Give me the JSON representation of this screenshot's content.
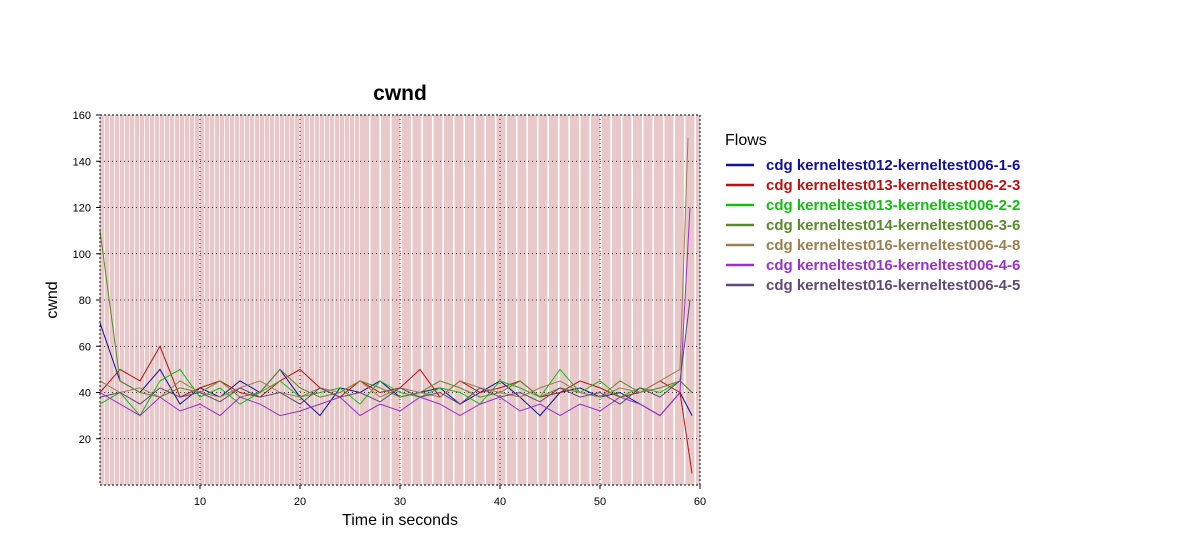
{
  "chart_data": {
    "type": "line",
    "title": "cwnd",
    "xlabel": "Time in seconds",
    "ylabel": "cwnd",
    "xlim": [
      0,
      60
    ],
    "ylim": [
      0,
      160
    ],
    "xticks": [
      10,
      20,
      30,
      40,
      50,
      60
    ],
    "yticks": [
      20,
      40,
      60,
      80,
      100,
      120,
      140,
      160
    ],
    "grid": true,
    "background_bands": true,
    "legend_title": "Flows",
    "legend_position": "right",
    "series": [
      {
        "name": "cdg kerneltest012-kerneltest006-1-6",
        "color": "#1010a0",
        "x": [
          0,
          2,
          4,
          6,
          8,
          10,
          12,
          14,
          16,
          18,
          20,
          22,
          24,
          26,
          28,
          30,
          32,
          34,
          36,
          38,
          40,
          42,
          44,
          46,
          48,
          50,
          52,
          54,
          56,
          58,
          59.2
        ],
        "y": [
          70,
          45,
          40,
          50,
          35,
          42,
          38,
          45,
          40,
          50,
          38,
          30,
          42,
          40,
          45,
          38,
          40,
          42,
          35,
          40,
          45,
          38,
          30,
          40,
          42,
          38,
          40,
          35,
          30,
          40,
          30
        ]
      },
      {
        "name": "cdg kerneltest013-kerneltest006-2-3",
        "color": "#c01010",
        "x": [
          0,
          2,
          4,
          6,
          8,
          10,
          12,
          14,
          16,
          18,
          20,
          22,
          24,
          26,
          28,
          30,
          32,
          34,
          36,
          38,
          40,
          42,
          44,
          46,
          48,
          50,
          52,
          54,
          56,
          58,
          59.2
        ],
        "y": [
          40,
          50,
          45,
          60,
          38,
          42,
          45,
          40,
          38,
          45,
          50,
          42,
          38,
          45,
          40,
          42,
          50,
          38,
          45,
          40,
          42,
          45,
          38,
          40,
          45,
          42,
          38,
          40,
          45,
          40,
          5
        ]
      },
      {
        "name": "cdg kerneltest013-kerneltest006-2-2",
        "color": "#10c010",
        "x": [
          0,
          2,
          4,
          6,
          8,
          10,
          12,
          14,
          16,
          18,
          20,
          22,
          24,
          26,
          28,
          30,
          32,
          34,
          36,
          38,
          40,
          42,
          44,
          46,
          48,
          50,
          52,
          54,
          56,
          58,
          59.2
        ],
        "y": [
          35,
          40,
          30,
          45,
          50,
          38,
          42,
          35,
          40,
          45,
          38,
          40,
          42,
          35,
          45,
          40,
          38,
          42,
          40,
          35,
          45,
          42,
          38,
          50,
          40,
          45,
          38,
          42,
          40,
          45,
          40
        ]
      },
      {
        "name": "cdg kerneltest014-kerneltest006-3-6",
        "color": "#5a8a2a",
        "x": [
          0,
          2,
          4,
          6,
          8,
          10,
          12,
          14,
          16,
          18,
          20,
          22,
          24,
          26,
          28,
          30,
          32,
          34,
          36,
          38,
          40,
          42,
          44,
          46,
          48,
          50,
          52,
          54,
          56,
          58,
          59.2
        ],
        "y": [
          110,
          45,
          40,
          38,
          42,
          40,
          45,
          38,
          40,
          50,
          42,
          38,
          40,
          45,
          42,
          38,
          40,
          45,
          42,
          38,
          40,
          45,
          38,
          42,
          40,
          38,
          45,
          40,
          42,
          45,
          40
        ]
      },
      {
        "name": "cdg kerneltest016-kerneltest006-4-8",
        "color": "#9a8050",
        "x": [
          0,
          2,
          4,
          6,
          8,
          10,
          12,
          14,
          16,
          18,
          20,
          22,
          24,
          26,
          28,
          30,
          32,
          34,
          36,
          38,
          40,
          42,
          44,
          46,
          48,
          50,
          52,
          54,
          56,
          58,
          58.8
        ],
        "y": [
          45,
          40,
          42,
          38,
          45,
          40,
          38,
          42,
          45,
          40,
          38,
          42,
          40,
          45,
          38,
          42,
          40,
          38,
          45,
          42,
          40,
          38,
          42,
          45,
          40,
          38,
          42,
          40,
          45,
          50,
          150
        ]
      },
      {
        "name": "cdg kerneltest016-kerneltest006-4-6",
        "color": "#9a30d0",
        "x": [
          0,
          2,
          4,
          6,
          8,
          10,
          12,
          14,
          16,
          18,
          20,
          22,
          24,
          26,
          28,
          30,
          32,
          34,
          36,
          38,
          40,
          42,
          44,
          46,
          48,
          50,
          52,
          54,
          56,
          58,
          59
        ],
        "y": [
          40,
          35,
          30,
          38,
          32,
          35,
          30,
          38,
          35,
          30,
          32,
          35,
          38,
          30,
          35,
          32,
          38,
          35,
          30,
          35,
          38,
          32,
          35,
          30,
          35,
          32,
          38,
          35,
          30,
          40,
          120
        ]
      },
      {
        "name": "cdg kerneltest016-kerneltest006-4-5",
        "color": "#604878",
        "x": [
          0,
          2,
          4,
          6,
          8,
          10,
          12,
          14,
          16,
          18,
          20,
          22,
          24,
          26,
          28,
          30,
          32,
          34,
          36,
          38,
          40,
          42,
          44,
          46,
          48,
          50,
          52,
          54,
          56,
          58,
          59
        ],
        "y": [
          38,
          40,
          35,
          42,
          38,
          40,
          36,
          42,
          38,
          40,
          35,
          42,
          38,
          40,
          36,
          42,
          38,
          40,
          35,
          42,
          38,
          40,
          36,
          42,
          38,
          40,
          35,
          42,
          38,
          45,
          80
        ]
      }
    ]
  }
}
